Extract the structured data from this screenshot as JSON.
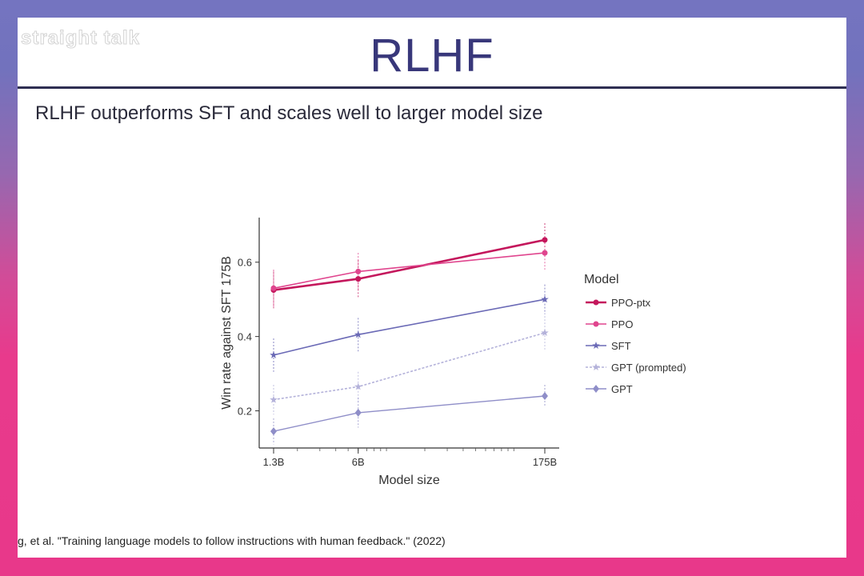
{
  "watermark": "straight talk",
  "slide": {
    "title": "RLHF",
    "subtitle": "RLHF outperforms SFT and scales well to larger model size",
    "citation": "g, et al. \"Training language models to follow instructions with human feedback.\" (2022)"
  },
  "chart_data": {
    "type": "line",
    "xlabel": "Model size",
    "ylabel": "Win rate against SFT 175B",
    "x_scale": "log",
    "x": [
      "1.3B",
      "6B",
      "175B"
    ],
    "x_values": [
      1.3,
      6,
      175
    ],
    "y_ticks": [
      0.2,
      0.4,
      0.6
    ],
    "y_tick_labels": [
      "0.2",
      "0.4",
      "0.6"
    ],
    "ylim": [
      0.1,
      0.72
    ],
    "grid": false,
    "legend_title": "Model",
    "legend_position": "right",
    "series": [
      {
        "name": "PPO-ptx",
        "values": [
          0.525,
          0.555,
          0.66
        ],
        "err": [
          0.05,
          0.05,
          0.045
        ],
        "color": "#c4175c",
        "marker": "circle",
        "dash": "",
        "width": 2.6
      },
      {
        "name": "PPO",
        "values": [
          0.53,
          0.575,
          0.625
        ],
        "err": [
          0.05,
          0.05,
          0.045
        ],
        "color": "#e0458e",
        "marker": "circle",
        "dash": "",
        "width": 1.6
      },
      {
        "name": "SFT",
        "values": [
          0.35,
          0.405,
          0.5
        ],
        "err": [
          0.045,
          0.045,
          0.04
        ],
        "color": "#6b6ab6",
        "marker": "star",
        "dash": "",
        "width": 1.6
      },
      {
        "name": "GPT (prompted)",
        "values": [
          0.23,
          0.265,
          0.41
        ],
        "err": [
          0.04,
          0.04,
          0.045
        ],
        "color": "#b4b2da",
        "marker": "star",
        "dash": "3,2",
        "width": 1.6
      },
      {
        "name": "GPT",
        "values": [
          0.145,
          0.195,
          0.24
        ],
        "err": [
          0.035,
          0.04,
          0.03
        ],
        "color": "#8f8ec8",
        "marker": "diamond",
        "dash": "",
        "width": 1.4
      }
    ]
  }
}
